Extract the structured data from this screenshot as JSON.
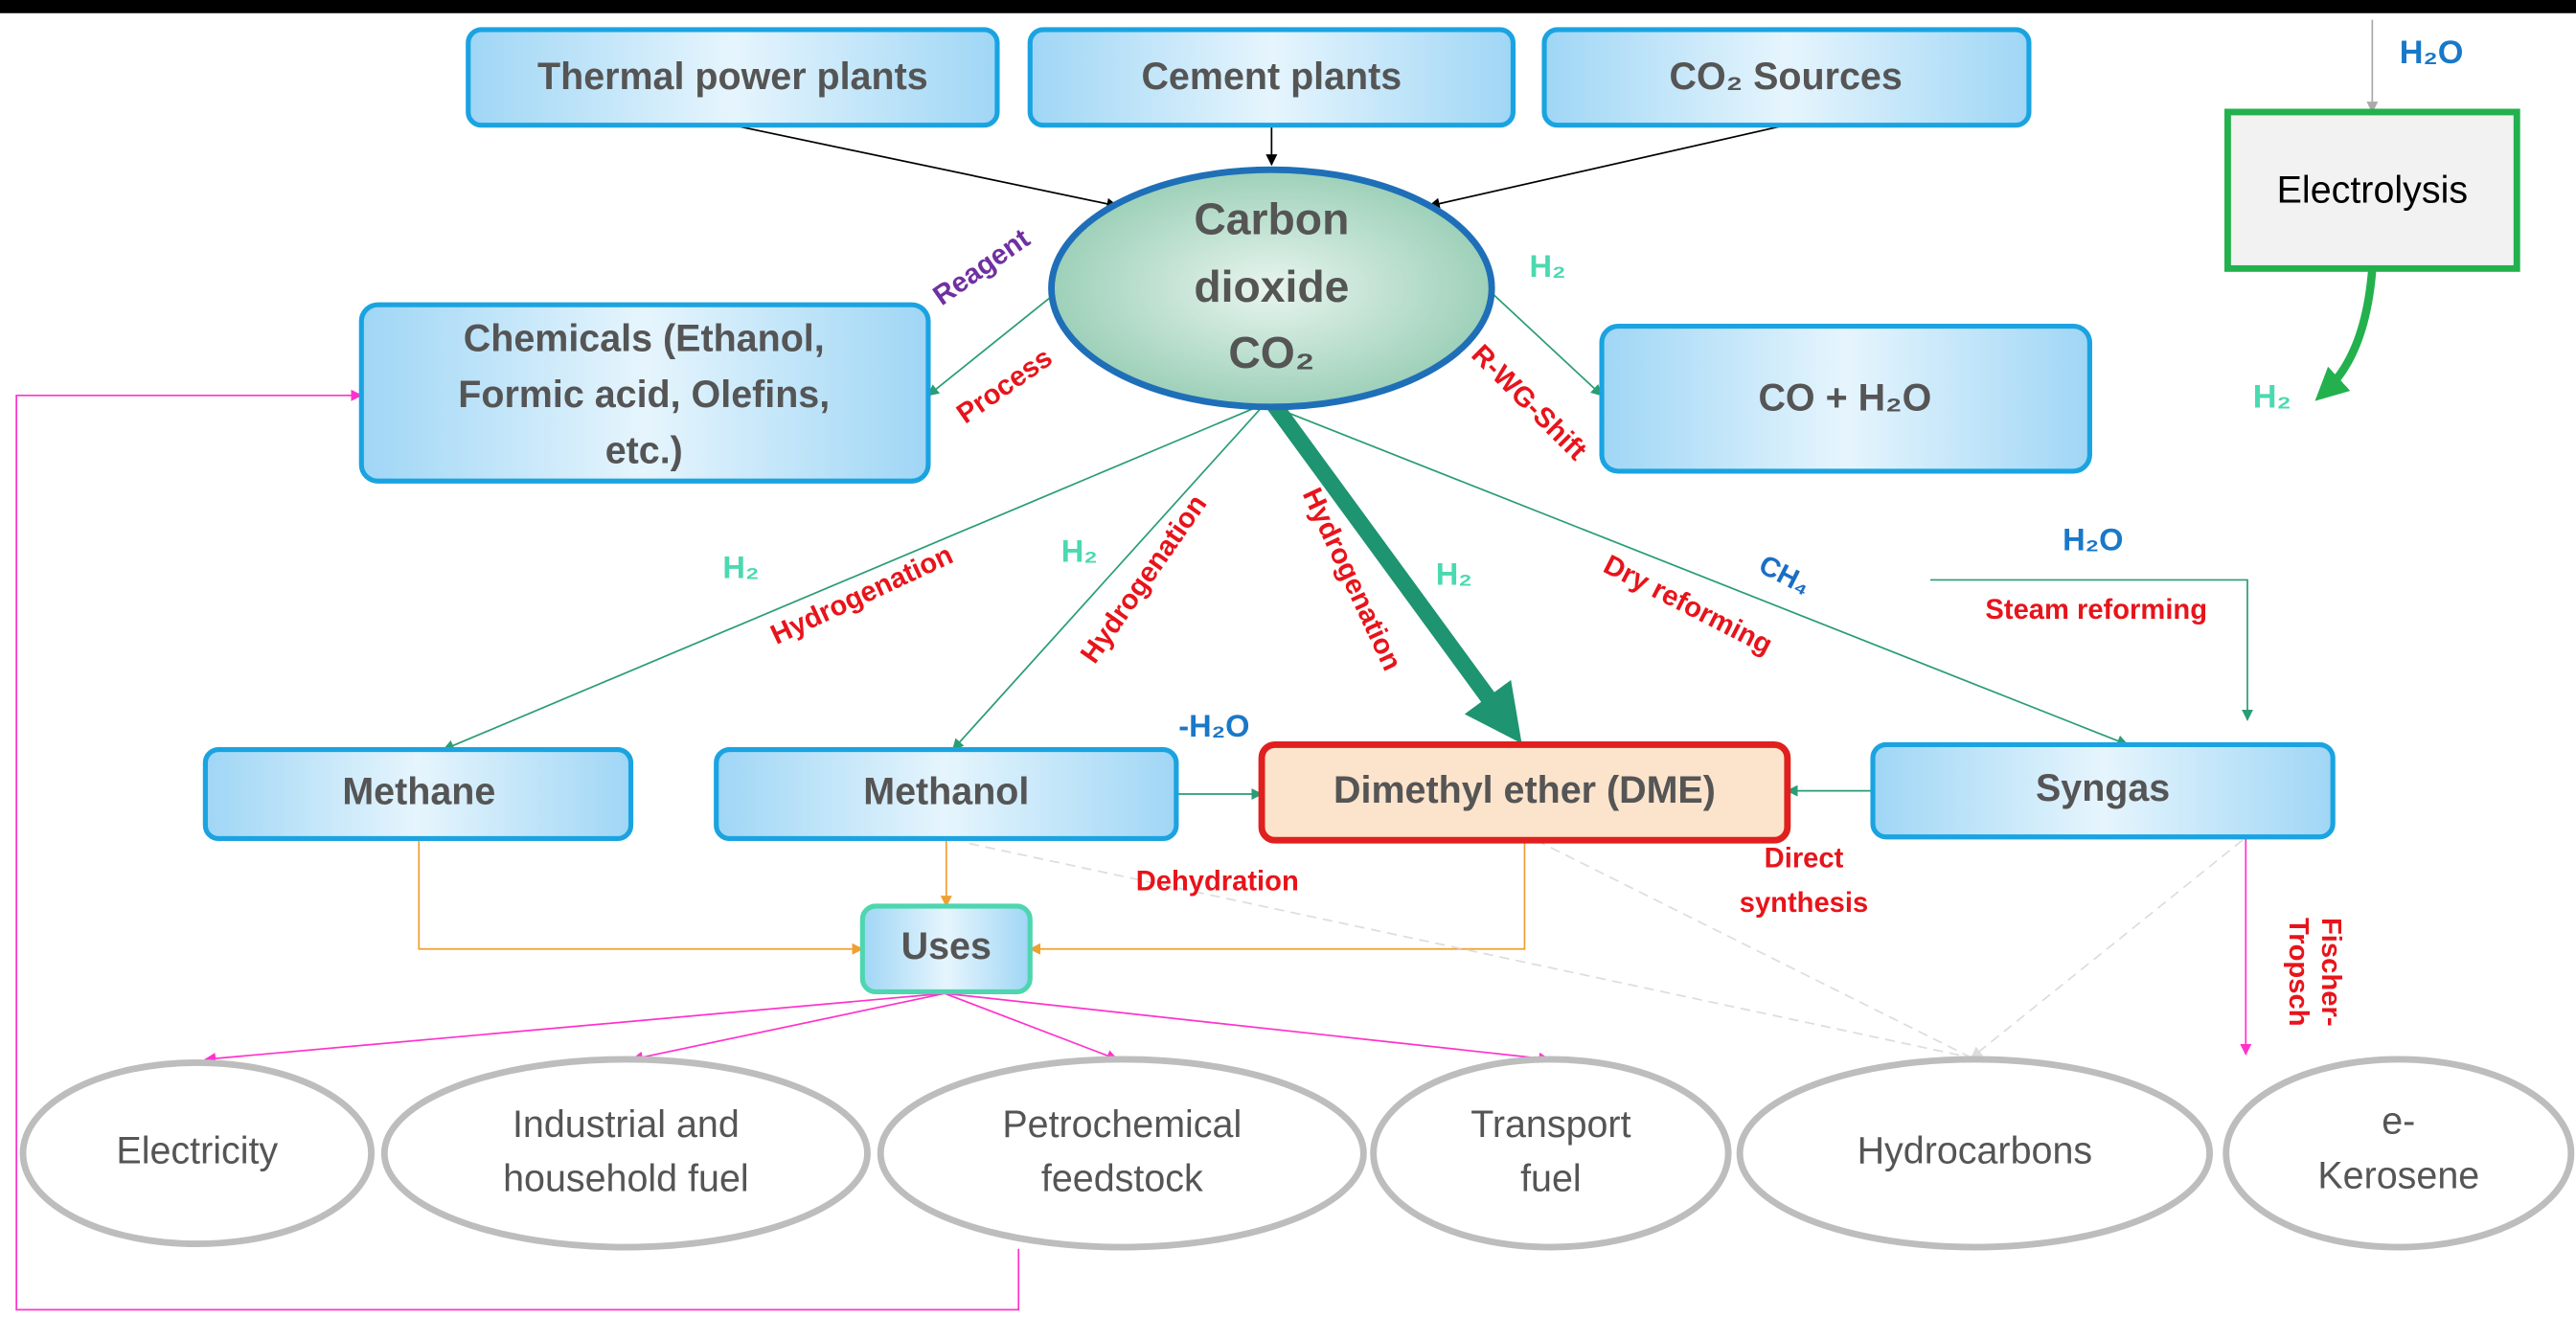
{
  "sources": [
    "Thermal power plants",
    "Cement plants",
    "CO₂ Sources"
  ],
  "center": {
    "lines": [
      "Carbon",
      "dioxide",
      "CO₂"
    ]
  },
  "chemicals": {
    "lines": [
      "Chemicals (Ethanol,",
      "Formic acid, Olefins,",
      "etc.)"
    ]
  },
  "shift_product": "CO + H₂O",
  "electrolysis": {
    "label": "Electrolysis",
    "input": "H₂O",
    "output": "H₂"
  },
  "products": [
    "Methane",
    "Methanol",
    "Dimethyl ether (DME)",
    "Syngas"
  ],
  "uses": "Uses",
  "outputs": [
    [
      "Electricity"
    ],
    [
      "Industrial and",
      "household fuel"
    ],
    [
      "Petrochemical",
      "feedstock"
    ],
    [
      "Transport",
      "fuel"
    ],
    [
      "Hydrocarbons"
    ],
    [
      "e-",
      "Kerosene"
    ]
  ],
  "edge_labels": {
    "reagent": "Reagent",
    "process": "Process",
    "shift_h2": "H₂",
    "shift": "R-WG-Shift",
    "methane_h2": "H₂",
    "methane_route": "Hydrogenation",
    "methanol_h2": "H₂",
    "methanol_route": "Hydrogenation",
    "dme_route": "Hydrogenation",
    "dme_h2": "H₂",
    "dry_reforming": "Dry reforming",
    "ch4": "CH₄",
    "steam_h2o": "H₂O",
    "steam_reforming": "Steam reforming",
    "minus_h2o": "-H₂O",
    "dehydration": "Dehydration",
    "direct_synthesis": [
      "Direct",
      "synthesis"
    ],
    "fischer_tropsch": [
      "Fischer-",
      "Tropsch"
    ]
  }
}
